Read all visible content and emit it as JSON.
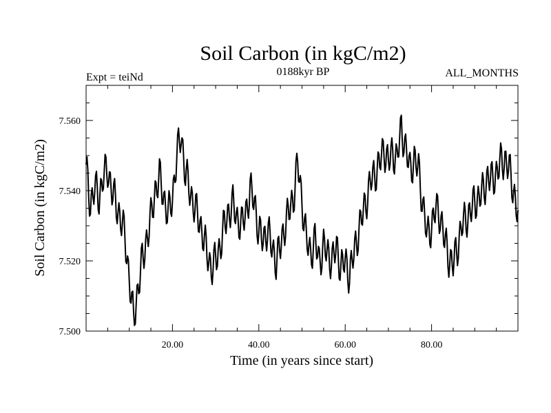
{
  "chart_data": {
    "type": "line",
    "title": "Soil Carbon (in kgC/m2)",
    "subtitle": "0188kyr BP",
    "left_label": "Expt = teiNd",
    "right_label": "ALL_MONTHS",
    "xlabel": "Time (in years since start)",
    "ylabel": "Soil Carbon (in kgC/m2)",
    "xlim": [
      0,
      100
    ],
    "ylim": [
      7.5,
      7.57
    ],
    "x_ticks": [
      20,
      40,
      60,
      80
    ],
    "x_tick_labels": [
      "20.00",
      "40.00",
      "60.00",
      "80.00"
    ],
    "y_ticks": [
      7.5,
      7.52,
      7.54,
      7.56
    ],
    "y_tick_labels": [
      "7.500",
      "7.520",
      "7.540",
      "7.560"
    ],
    "line_color": "#000000",
    "series": [
      {
        "name": "Soil Carbon",
        "x": [
          0,
          1,
          2,
          3,
          4,
          5,
          6,
          7,
          8,
          9,
          10,
          11,
          12,
          13,
          14,
          15,
          16,
          17,
          18,
          19,
          20,
          21,
          22,
          23,
          24,
          25,
          26,
          27,
          28,
          29,
          30,
          31,
          32,
          33,
          34,
          35,
          36,
          37,
          38,
          39,
          40,
          41,
          42,
          43,
          44,
          45,
          46,
          47,
          48,
          49,
          50,
          51,
          52,
          53,
          54,
          55,
          56,
          57,
          58,
          59,
          60,
          61,
          62,
          63,
          64,
          65,
          66,
          67,
          68,
          69,
          70,
          71,
          72,
          73,
          74,
          75,
          76,
          77,
          78,
          79,
          80,
          81,
          82,
          83,
          84,
          85,
          86,
          87,
          88,
          89,
          90,
          91,
          92,
          93,
          94,
          95,
          96,
          97,
          98,
          99,
          100
        ],
        "values": [
          7.546,
          7.536,
          7.541,
          7.538,
          7.544,
          7.546,
          7.54,
          7.536,
          7.532,
          7.527,
          7.515,
          7.503,
          7.512,
          7.52,
          7.526,
          7.532,
          7.54,
          7.544,
          7.538,
          7.533,
          7.538,
          7.55,
          7.556,
          7.545,
          7.54,
          7.536,
          7.532,
          7.528,
          7.522,
          7.518,
          7.52,
          7.524,
          7.53,
          7.534,
          7.536,
          7.532,
          7.53,
          7.534,
          7.54,
          7.537,
          7.528,
          7.526,
          7.529,
          7.524,
          7.52,
          7.524,
          7.53,
          7.534,
          7.538,
          7.548,
          7.537,
          7.526,
          7.522,
          7.526,
          7.52,
          7.524,
          7.522,
          7.52,
          7.524,
          7.518,
          7.52,
          7.516,
          7.522,
          7.528,
          7.533,
          7.538,
          7.543,
          7.545,
          7.548,
          7.552,
          7.548,
          7.551,
          7.549,
          7.558,
          7.552,
          7.546,
          7.549,
          7.546,
          7.536,
          7.527,
          7.53,
          7.535,
          7.533,
          7.526,
          7.521,
          7.519,
          7.524,
          7.53,
          7.532,
          7.534,
          7.537,
          7.538,
          7.54,
          7.544,
          7.543,
          7.545,
          7.548,
          7.549,
          7.546,
          7.54,
          7.533
        ]
      }
    ]
  }
}
